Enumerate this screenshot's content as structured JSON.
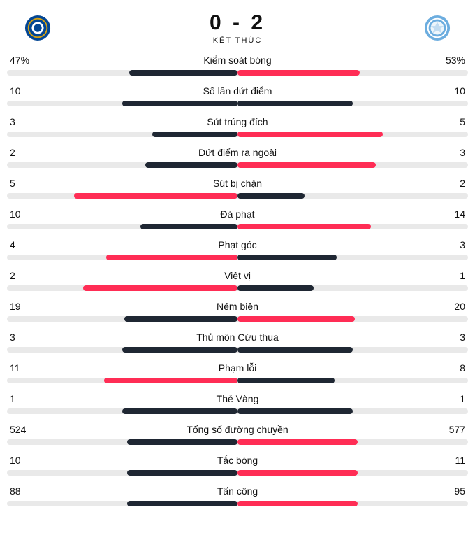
{
  "colors": {
    "track": "#e9e9e9",
    "home_bar": "#1f2733",
    "away_bar": "#ff2d55",
    "highlight": "#ff2d55",
    "normal": "#1f2733"
  },
  "header": {
    "home_score": "0",
    "away_score": "2",
    "dash": " - ",
    "status": "KẾT THÚC",
    "home_team": {
      "name": "Chelsea",
      "crest_bg": "#034694",
      "crest_ring": "#d4a012",
      "crest_center": "#ffffff"
    },
    "away_team": {
      "name": "Manchester City",
      "crest_bg": "#6caddf",
      "crest_ring": "#ffffff",
      "crest_center": "#eef6fb"
    }
  },
  "stats": [
    {
      "label": "Kiểm soát bóng",
      "home": "47%",
      "away": "53%",
      "home_pct": 47,
      "away_pct": 53,
      "winner": "away"
    },
    {
      "label": "Số lần dứt điểm",
      "home": "10",
      "away": "10",
      "home_pct": 50,
      "away_pct": 50,
      "winner": "tie"
    },
    {
      "label": "Sút trúng đích",
      "home": "3",
      "away": "5",
      "home_pct": 37,
      "away_pct": 63,
      "winner": "away"
    },
    {
      "label": "Dứt điểm ra ngoài",
      "home": "2",
      "away": "3",
      "home_pct": 40,
      "away_pct": 60,
      "winner": "away"
    },
    {
      "label": "Sút bị chặn",
      "home": "5",
      "away": "2",
      "home_pct": 71,
      "away_pct": 29,
      "winner": "home"
    },
    {
      "label": "Đá phạt",
      "home": "10",
      "away": "14",
      "home_pct": 42,
      "away_pct": 58,
      "winner": "away"
    },
    {
      "label": "Phạt góc",
      "home": "4",
      "away": "3",
      "home_pct": 57,
      "away_pct": 43,
      "winner": "home"
    },
    {
      "label": "Việt vị",
      "home": "2",
      "away": "1",
      "home_pct": 67,
      "away_pct": 33,
      "winner": "home"
    },
    {
      "label": "Ném biên",
      "home": "19",
      "away": "20",
      "home_pct": 49,
      "away_pct": 51,
      "winner": "away"
    },
    {
      "label": "Thủ môn Cứu thua",
      "home": "3",
      "away": "3",
      "home_pct": 50,
      "away_pct": 50,
      "winner": "tie"
    },
    {
      "label": "Phạm lỗi",
      "home": "11",
      "away": "8",
      "home_pct": 58,
      "away_pct": 42,
      "winner": "home"
    },
    {
      "label": "Thẻ Vàng",
      "home": "1",
      "away": "1",
      "home_pct": 50,
      "away_pct": 50,
      "winner": "tie"
    },
    {
      "label": "Tổng số đường chuyền",
      "home": "524",
      "away": "577",
      "home_pct": 48,
      "away_pct": 52,
      "winner": "away"
    },
    {
      "label": "Tắc bóng",
      "home": "10",
      "away": "11",
      "home_pct": 48,
      "away_pct": 52,
      "winner": "away"
    },
    {
      "label": "Tấn công",
      "home": "88",
      "away": "95",
      "home_pct": 48,
      "away_pct": 52,
      "winner": "away"
    }
  ]
}
